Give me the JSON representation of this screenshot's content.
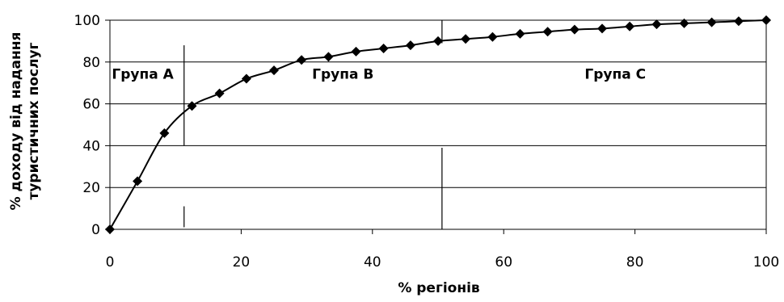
{
  "chart_data": {
    "type": "line",
    "xlabel": "% регіонів",
    "ylabel_lines": [
      "% доходу від надання",
      "туристичних послуг"
    ],
    "xlim": [
      0,
      100
    ],
    "ylim": [
      0,
      100
    ],
    "x_ticks": [
      "0",
      "20",
      "40",
      "60",
      "80",
      "100"
    ],
    "y_ticks": [
      "0",
      "20",
      "40",
      "60",
      "80",
      "100"
    ],
    "grid": "horizontal",
    "series": [
      {
        "marker": "diamond",
        "x": [
          0,
          4.2,
          8.3,
          12.5,
          16.7,
          20.8,
          25,
          29.2,
          33.3,
          37.5,
          41.7,
          45.8,
          50,
          54.2,
          58.3,
          62.5,
          66.7,
          70.8,
          75,
          79.2,
          83.3,
          87.5,
          91.7,
          95.8,
          100
        ],
        "y": [
          0,
          23,
          46,
          59,
          65,
          72,
          76,
          81,
          82.5,
          85,
          86.5,
          88,
          90,
          91,
          92,
          93.5,
          94.5,
          95.5,
          96,
          97,
          98,
          98.5,
          99,
          99.5,
          100
        ]
      }
    ],
    "group_dividers": [
      {
        "x": 11.3,
        "segments": [
          [
            40,
            88
          ],
          [
            1,
            11
          ]
        ]
      },
      {
        "x": 50.6,
        "segments": [
          [
            89,
            100
          ],
          [
            0,
            39
          ]
        ]
      }
    ],
    "annotations": [
      {
        "text": "Група A",
        "x": 5,
        "y": 72
      },
      {
        "text": "Група B",
        "x": 35.5,
        "y": 72
      },
      {
        "text": "Група C",
        "x": 77,
        "y": 72
      }
    ]
  },
  "colors": {
    "line": "#000000",
    "grid": "#000000",
    "marker": "#000000"
  }
}
